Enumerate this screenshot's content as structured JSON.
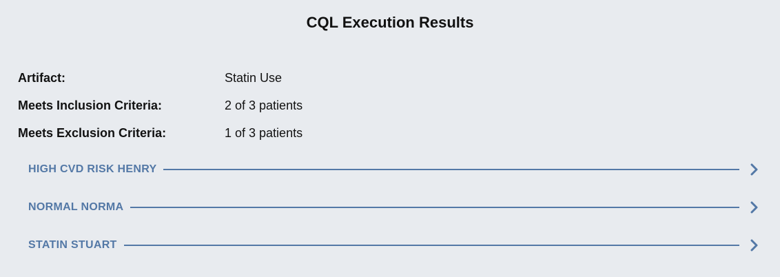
{
  "title": "CQL Execution Results",
  "summary": {
    "artifact_label": "Artifact:",
    "artifact_value": "Statin Use",
    "inclusion_label": "Meets Inclusion Criteria:",
    "inclusion_value": "2 of 3 patients",
    "exclusion_label": "Meets Exclusion Criteria:",
    "exclusion_value": "1 of 3 patients"
  },
  "patients": [
    {
      "name": "HIGH CVD RISK HENRY",
      "icon": "chevron-right-icon"
    },
    {
      "name": "NORMAL NORMA",
      "icon": "chevron-right-icon"
    },
    {
      "name": "STATIN STUART",
      "icon": "chevron-right-icon"
    }
  ],
  "colors": {
    "background": "#e8ebef",
    "accent": "#5378a6",
    "text": "#111111"
  }
}
